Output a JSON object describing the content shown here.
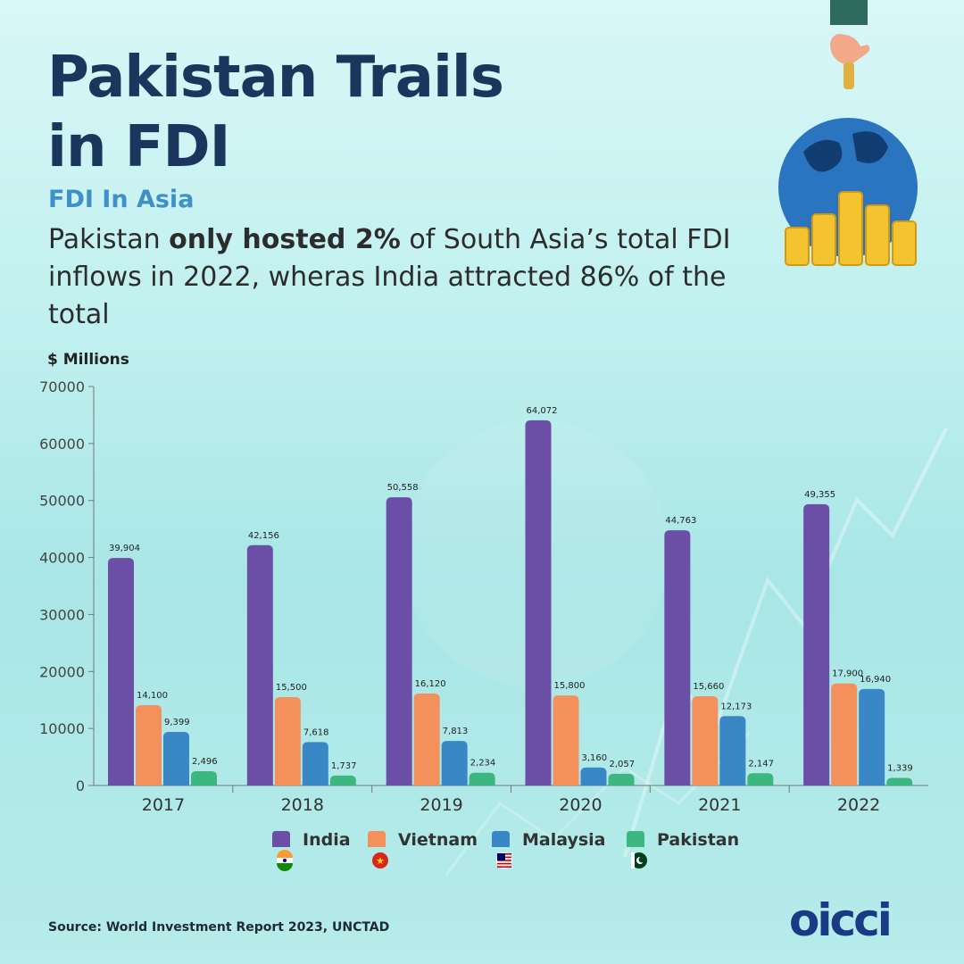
{
  "header": {
    "title_line1": "Pakistan Trails",
    "title_line2": "in FDI",
    "subtitle": "FDI In Asia",
    "desc_pre": "Pakistan ",
    "desc_bold": "only hosted 2%",
    "desc_post": " of South Asia’s total FDI inflows in 2022, wheras India attracted 86% of the total"
  },
  "footer": {
    "source": "Source: World Investment Report 2023, UNCTAD",
    "logo": "oicci"
  },
  "colors": {
    "India": "#6b4fa6",
    "Vietnam": "#f4905c",
    "Malaysia": "#3a87c6",
    "Pakistan": "#3cb77f"
  },
  "chart_data": {
    "type": "bar",
    "ylabel": "$ Millions",
    "ylim": [
      0,
      70000
    ],
    "yticks": [
      0,
      10000,
      20000,
      30000,
      40000,
      50000,
      60000,
      70000
    ],
    "categories": [
      "2017",
      "2018",
      "2019",
      "2020",
      "2021",
      "2022"
    ],
    "series": [
      {
        "name": "India",
        "flag": "india-flag-icon",
        "values": [
          39904,
          42156,
          50558,
          64072,
          44763,
          49355
        ],
        "labels": [
          "39,904",
          "42,156",
          "50,558",
          "64,072",
          "44,763",
          "49,355"
        ]
      },
      {
        "name": "Vietnam",
        "flag": "vietnam-flag-icon",
        "values": [
          14100,
          15500,
          16120,
          15800,
          15660,
          17900
        ],
        "labels": [
          "14,100",
          "15,500",
          "16,120",
          "15,800",
          "15,660",
          "17,900"
        ]
      },
      {
        "name": "Malaysia",
        "flag": "malaysia-flag-icon",
        "values": [
          9399,
          7618,
          7813,
          3160,
          12173,
          16940
        ],
        "labels": [
          "9,399",
          "7,618",
          "7,813",
          "3,160",
          "12,173",
          "16,940"
        ]
      },
      {
        "name": "Pakistan",
        "flag": "pakistan-flag-icon",
        "values": [
          2496,
          1737,
          2234,
          2057,
          2147,
          1339
        ],
        "labels": [
          "2,496",
          "1,737",
          "2,234",
          "2,057",
          "2,147",
          "1,339"
        ]
      }
    ],
    "legend_position": "bottom",
    "grid": false
  }
}
